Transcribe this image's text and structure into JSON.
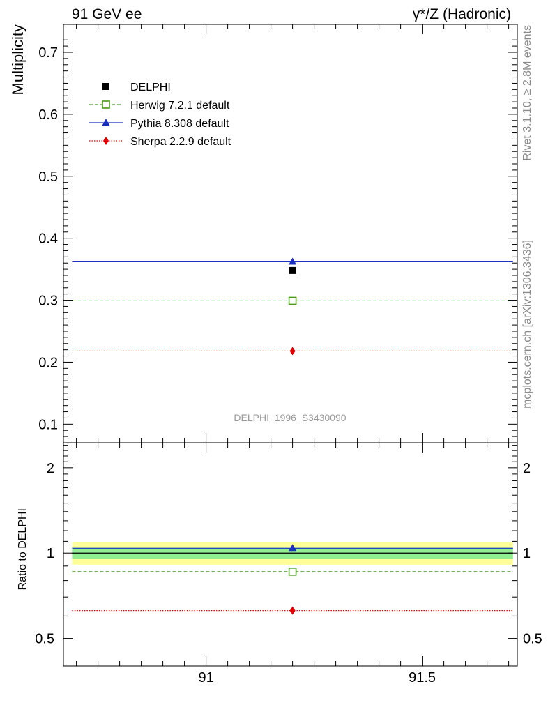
{
  "header": {
    "left": "91 GeV ee",
    "right": "γ*/Z (Hadronic)"
  },
  "side_texts": {
    "rivet": "Rivet 3.1.10, ≥ 2.8M events",
    "mcplots": "mcplots.cern.ch [arXiv:1306.3436]"
  },
  "watermark": "DELPHI_1996_S3430090",
  "colors": {
    "delphi": "#000000",
    "herwig": "#4a9a1a",
    "pythia": "#1a2fbf",
    "sherpa": "#e00000",
    "band_inner": "#90ee90",
    "band_outer": "#ffff99"
  },
  "chart_data": [
    {
      "type": "scatter",
      "ylabel": "Multiplicity",
      "xlim": [
        90.67,
        91.72
      ],
      "ylim": [
        0.07,
        0.745
      ],
      "yticks": [
        0.1,
        0.2,
        0.3,
        0.4,
        0.5,
        0.6,
        0.7
      ],
      "ytick_labels": [
        "0.1",
        "0.2",
        "0.3",
        "0.4",
        "0.5",
        "0.6",
        "0.7"
      ],
      "bin": [
        90.69,
        91.71
      ],
      "x": 91.2,
      "series": [
        {
          "name": "DELPHI",
          "y": 0.348,
          "marker": "square",
          "style": "none"
        },
        {
          "name": "Herwig 7.2.1 default",
          "y": 0.299,
          "marker": "open-square",
          "style": "dashed"
        },
        {
          "name": "Pythia 8.308 default",
          "y": 0.362,
          "marker": "triangle",
          "style": "solid"
        },
        {
          "name": "Sherpa 2.2.9 default",
          "y": 0.218,
          "marker": "diamond",
          "style": "dotted"
        }
      ],
      "legend": "top-left"
    },
    {
      "type": "scatter",
      "ylabel": "Ratio to DELPHI",
      "log_y": true,
      "xlim": [
        90.67,
        91.72
      ],
      "ylim": [
        0.4,
        2.45
      ],
      "yticks": [
        0.5,
        1,
        2
      ],
      "ytick_labels": [
        "0.5",
        "1",
        "2"
      ],
      "xticks": [
        91,
        91.5
      ],
      "xtick_labels": [
        "91",
        "91.5"
      ],
      "bin": [
        90.69,
        91.71
      ],
      "x": 91.2,
      "band_inner": [
        0.955,
        1.045
      ],
      "band_outer": [
        0.91,
        1.09
      ],
      "series": [
        {
          "name": "Herwig 7.2.1 default",
          "y": 0.86,
          "marker": "open-square",
          "style": "dashed"
        },
        {
          "name": "Pythia 8.308 default",
          "y": 1.04,
          "marker": "triangle",
          "style": "solid"
        },
        {
          "name": "Sherpa 2.2.9 default",
          "y": 0.627,
          "marker": "diamond",
          "style": "dotted"
        }
      ]
    }
  ]
}
